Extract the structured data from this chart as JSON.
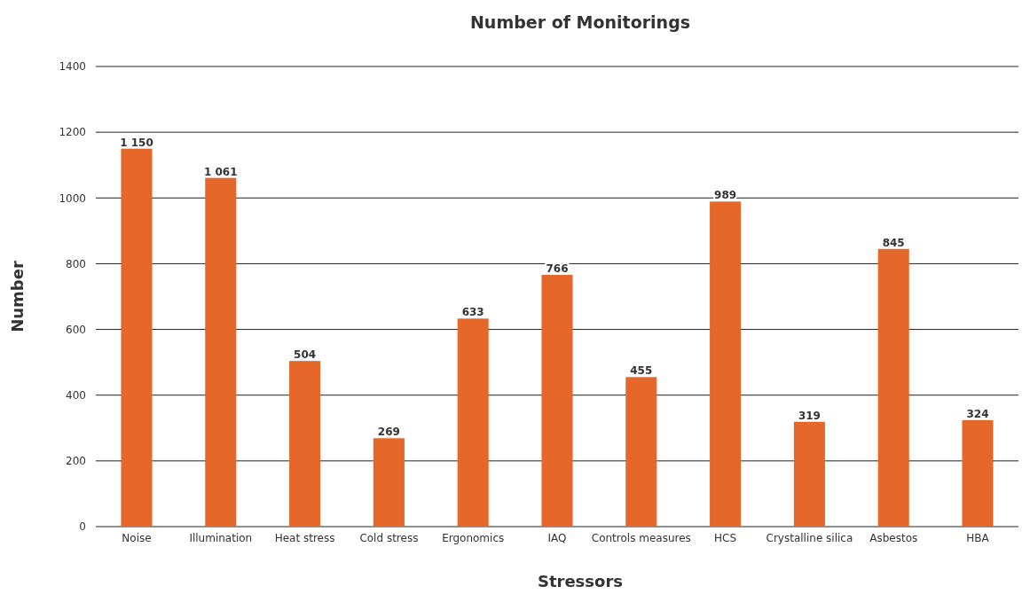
{
  "chart_data": {
    "type": "bar",
    "title": "Number of Monitorings",
    "xlabel": "Stressors",
    "ylabel": "Number",
    "categories": [
      "Noise",
      "Illumination",
      "Heat stress",
      "Cold stress",
      "Ergonomics",
      "IAQ",
      "Controls measures",
      "HCS",
      "Crystalline silica",
      "Asbestos",
      "HBA"
    ],
    "values": [
      1150,
      1061,
      504,
      269,
      633,
      766,
      455,
      989,
      319,
      845,
      324
    ],
    "value_labels": [
      "1 150",
      "1 061",
      "504",
      "269",
      "633",
      "766",
      "455",
      "989",
      "319",
      "845",
      "324"
    ],
    "color": "#e5682a",
    "ylim": [
      0,
      1400
    ],
    "yticks": [
      0,
      200,
      400,
      600,
      800,
      1000,
      1200,
      1400
    ],
    "grid": "y"
  }
}
